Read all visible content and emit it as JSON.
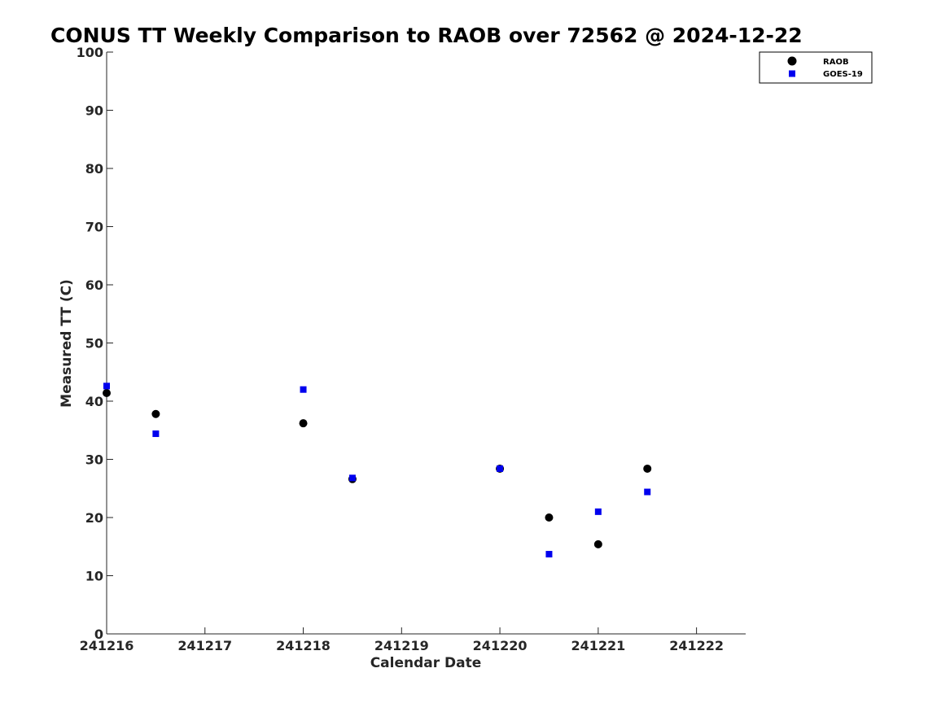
{
  "chart_data": {
    "type": "scatter",
    "title": "CONUS TT Weekly Comparison to RAOB over 72562 @ 2024-12-22",
    "xlabel": "Calendar Date",
    "ylabel": "Measured TT (C)",
    "x_scale": "date",
    "xlim": [
      "2024-12-16 00:00",
      "2024-12-22 12:00"
    ],
    "ylim": [
      0,
      100
    ],
    "x_ticks": [
      "2024-12-16",
      "2024-12-17",
      "2024-12-18",
      "2024-12-19",
      "2024-12-20",
      "2024-12-21",
      "2024-12-22"
    ],
    "x_tick_labels": [
      "241216",
      "241217",
      "241218",
      "241219",
      "241220",
      "241221",
      "241222"
    ],
    "y_ticks": [
      0,
      10,
      20,
      30,
      40,
      50,
      60,
      70,
      80,
      90,
      100
    ],
    "y_tick_labels": [
      "0",
      "10",
      "20",
      "30",
      "40",
      "50",
      "60",
      "70",
      "80",
      "90",
      "100"
    ],
    "grid": false,
    "legend_position": "top-right",
    "series": [
      {
        "name": "RAOB",
        "marker": "circle",
        "color": "#000000",
        "x": [
          "2024-12-16 00:00",
          "2024-12-16 12:00",
          "2024-12-18 00:00",
          "2024-12-18 12:00",
          "2024-12-20 00:00",
          "2024-12-20 12:00",
          "2024-12-21 00:00",
          "2024-12-21 12:00"
        ],
        "y": [
          41.4,
          37.8,
          36.2,
          26.6,
          28.4,
          20.0,
          15.4,
          28.4
        ]
      },
      {
        "name": "GOES-19",
        "marker": "square",
        "color": "#0000ee",
        "x": [
          "2024-12-16 00:00",
          "2024-12-16 12:00",
          "2024-12-18 00:00",
          "2024-12-18 12:00",
          "2024-12-20 00:00",
          "2024-12-20 12:00",
          "2024-12-21 00:00",
          "2024-12-21 12:00"
        ],
        "y": [
          42.6,
          34.4,
          42.0,
          26.8,
          28.4,
          13.7,
          21.0,
          24.4
        ]
      }
    ]
  }
}
